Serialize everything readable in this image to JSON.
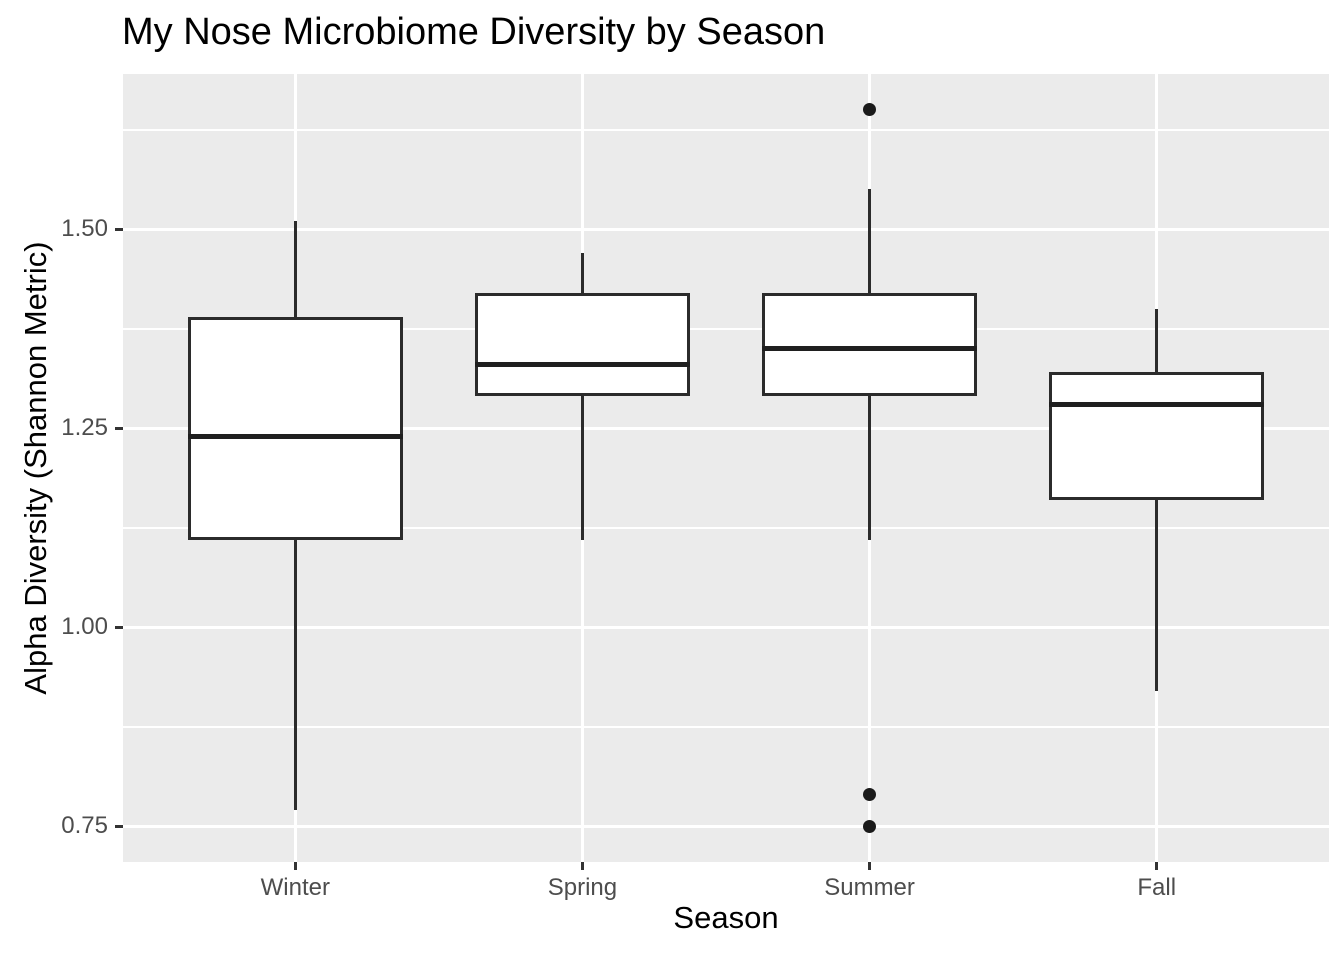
{
  "chart_data": {
    "type": "boxplot",
    "title": "My Nose Microbiome Diversity by Season",
    "xlabel": "Season",
    "ylabel": "Alpha Diversity (Shannon Metric)",
    "categories": [
      "Winter",
      "Spring",
      "Summer",
      "Fall"
    ],
    "boxes": [
      {
        "category": "Winter",
        "whisker_low": 0.77,
        "q1": 1.11,
        "median": 1.24,
        "q3": 1.39,
        "whisker_high": 1.51,
        "outliers": []
      },
      {
        "category": "Spring",
        "whisker_low": 1.11,
        "q1": 1.29,
        "median": 1.33,
        "q3": 1.42,
        "whisker_high": 1.47,
        "outliers": []
      },
      {
        "category": "Summer",
        "whisker_low": 1.11,
        "q1": 1.29,
        "median": 1.35,
        "q3": 1.42,
        "whisker_high": 1.55,
        "outliers": [
          1.65,
          0.79,
          0.75
        ]
      },
      {
        "category": "Fall",
        "whisker_low": 0.92,
        "q1": 1.16,
        "median": 1.28,
        "q3": 1.32,
        "whisker_high": 1.4,
        "outliers": []
      }
    ],
    "ylim": [
      0.705,
      1.695
    ],
    "yticks": [
      0.75,
      1.0,
      1.25,
      1.5
    ],
    "ytick_labels": [
      "0.75",
      "1.00",
      "1.25",
      "1.50"
    ],
    "yminor_gridlines": [
      0.875,
      1.125,
      1.375,
      1.625
    ],
    "grid": true,
    "legend": false,
    "style": {
      "panel_bg": "#EBEBEB",
      "grid_color": "#FFFFFF",
      "box_fill": "#FFFFFF",
      "box_stroke": "#2B2B2B",
      "median_color": "#1F1F1F",
      "outlier_color": "#1A1A1A",
      "tick_mark_color": "#333333",
      "tick_label_color": "#4D4D4D",
      "axis_title_color": "#000000",
      "title_color": "#000000"
    }
  }
}
